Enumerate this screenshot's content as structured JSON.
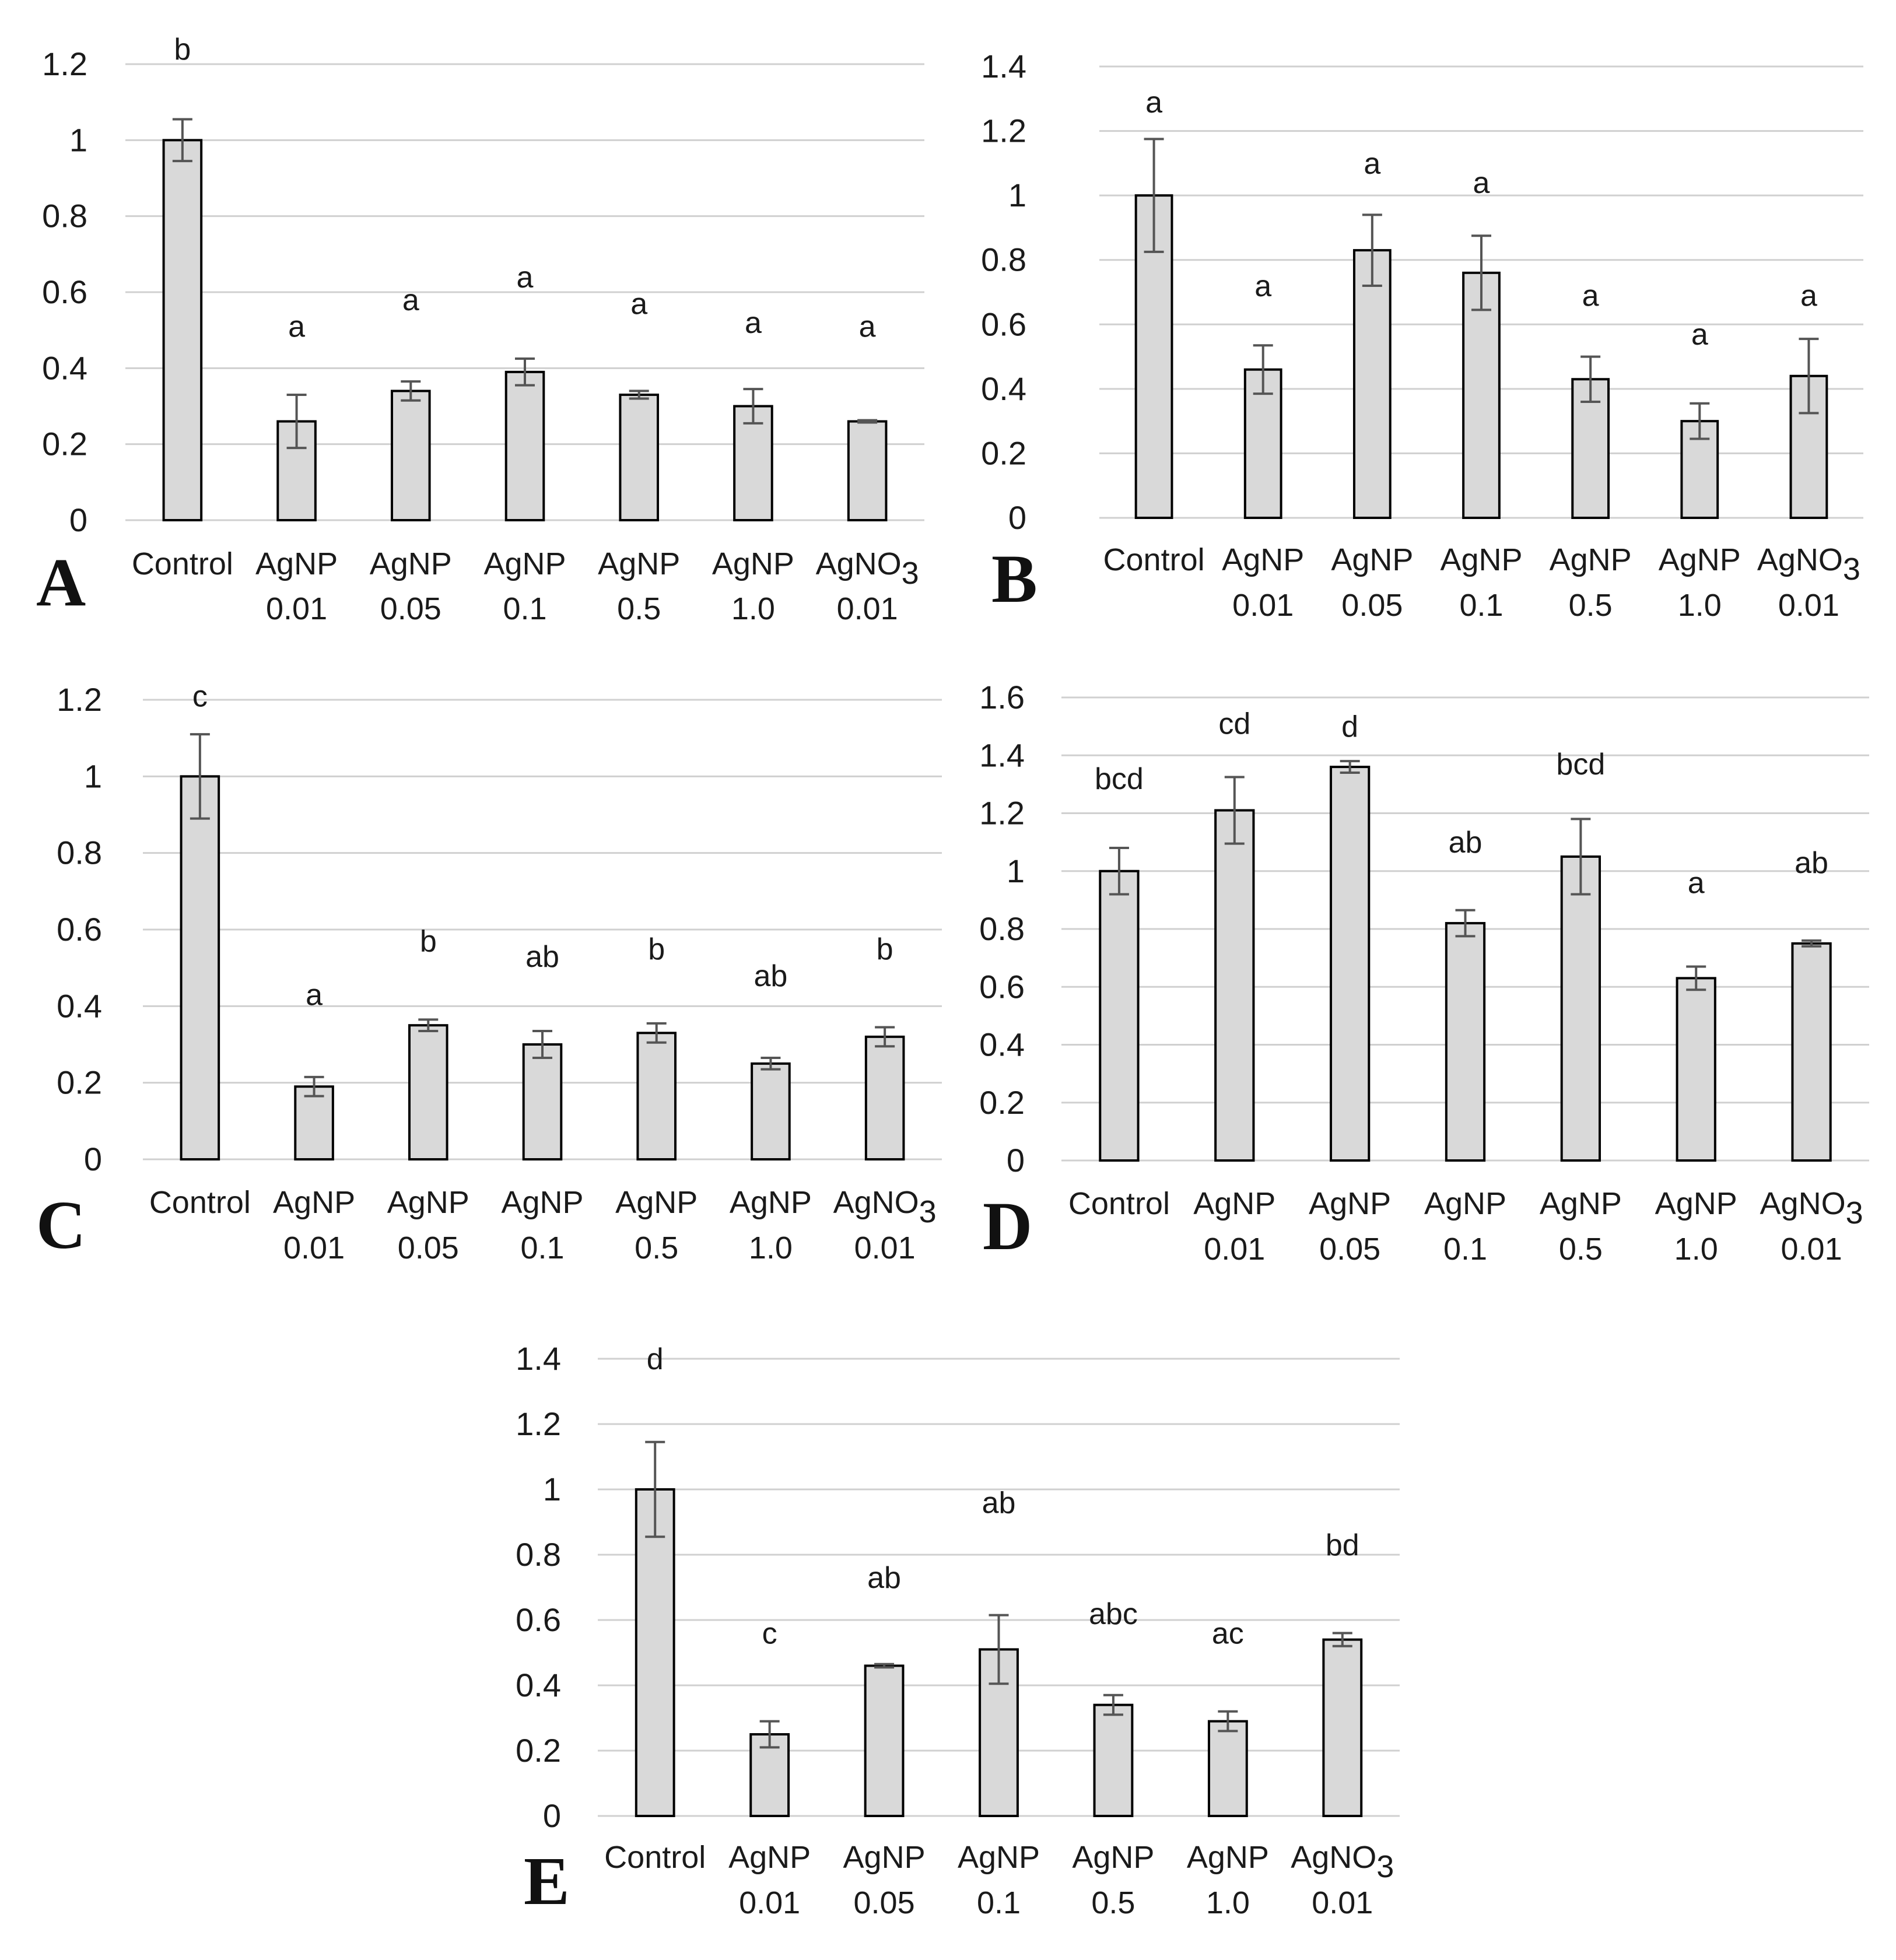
{
  "colors": {
    "bar_fill": "#d9d9d9",
    "bar_stroke": "#000000",
    "grid": "#d0d0d0",
    "error_bar": "#555555"
  },
  "chart_data": [
    {
      "panel": "A",
      "type": "bar",
      "title": "",
      "xlabel": "",
      "ylabel": "",
      "ylim": [
        0,
        1.2
      ],
      "yticks": [
        0,
        0.2,
        0.4,
        0.6,
        0.8,
        1,
        1.2
      ],
      "ytick_labels": [
        "0",
        "0.2",
        "0.4",
        "0.6",
        "0.8",
        "1",
        "1.2"
      ],
      "categories": [
        {
          "line1": "Control",
          "line2": ""
        },
        {
          "line1": "AgNP",
          "line2": "0.01"
        },
        {
          "line1": "AgNP",
          "line2": "0.05"
        },
        {
          "line1": "AgNP",
          "line2": "0.1"
        },
        {
          "line1": "AgNP",
          "line2": "0.5"
        },
        {
          "line1": "AgNP",
          "line2": "1.0"
        },
        {
          "line1": "AgNO",
          "sub": "3",
          "line2": "0.01"
        }
      ],
      "values": [
        1.0,
        0.26,
        0.34,
        0.39,
        0.33,
        0.3,
        0.26
      ],
      "errors": [
        0.055,
        0.07,
        0.025,
        0.035,
        0.01,
        0.045,
        0.003
      ],
      "letters": [
        "b",
        "a",
        "a",
        "a",
        "a",
        "a",
        "a"
      ],
      "letter_heights": [
        1.24,
        0.51,
        0.58,
        0.64,
        0.57,
        0.52,
        0.51
      ]
    },
    {
      "panel": "B",
      "type": "bar",
      "title": "",
      "xlabel": "",
      "ylabel": "",
      "ylim": [
        0,
        1.4
      ],
      "yticks": [
        0,
        0.2,
        0.4,
        0.6,
        0.8,
        1,
        1.2,
        1.4
      ],
      "ytick_labels": [
        "0",
        "0.2",
        "0.4",
        "0.6",
        "0.8",
        "1",
        "1.2",
        "1.4"
      ],
      "categories": [
        {
          "line1": "Control",
          "line2": ""
        },
        {
          "line1": "AgNP",
          "line2": "0.01"
        },
        {
          "line1": "AgNP",
          "line2": "0.05"
        },
        {
          "line1": "AgNP",
          "line2": "0.1"
        },
        {
          "line1": "AgNP",
          "line2": "0.5"
        },
        {
          "line1": "AgNP",
          "line2": "1.0"
        },
        {
          "line1": "AgNO",
          "sub": "3",
          "line2": "0.01"
        }
      ],
      "values": [
        1.0,
        0.46,
        0.83,
        0.76,
        0.43,
        0.3,
        0.44
      ],
      "errors": [
        0.175,
        0.075,
        0.11,
        0.115,
        0.07,
        0.055,
        0.115
      ],
      "letters": [
        "a",
        "a",
        "a",
        "a",
        "a",
        "a",
        "a"
      ],
      "letter_heights": [
        1.29,
        0.72,
        1.1,
        1.04,
        0.69,
        0.57,
        0.69
      ]
    },
    {
      "panel": "C",
      "type": "bar",
      "title": "",
      "xlabel": "",
      "ylabel": "",
      "ylim": [
        0,
        1.2
      ],
      "yticks": [
        0,
        0.2,
        0.4,
        0.6,
        0.8,
        1,
        1.2
      ],
      "ytick_labels": [
        "0",
        "0.2",
        "0.4",
        "0.6",
        "0.8",
        "1",
        "1.2"
      ],
      "categories": [
        {
          "line1": "Control",
          "line2": ""
        },
        {
          "line1": "AgNP",
          "line2": "0.01"
        },
        {
          "line1": "AgNP",
          "line2": "0.05"
        },
        {
          "line1": "AgNP",
          "line2": "0.1"
        },
        {
          "line1": "AgNP",
          "line2": "0.5"
        },
        {
          "line1": "AgNP",
          "line2": "1.0"
        },
        {
          "line1": "AgNO",
          "sub": "3",
          "line2": "0.01"
        }
      ],
      "values": [
        1.0,
        0.19,
        0.35,
        0.3,
        0.33,
        0.25,
        0.32
      ],
      "errors": [
        0.11,
        0.025,
        0.015,
        0.035,
        0.025,
        0.015,
        0.025
      ],
      "letters": [
        "c",
        "a",
        "b",
        "ab",
        "b",
        "ab",
        "b"
      ],
      "letter_heights": [
        1.21,
        0.43,
        0.57,
        0.53,
        0.55,
        0.48,
        0.55
      ]
    },
    {
      "panel": "D",
      "type": "bar",
      "title": "",
      "xlabel": "",
      "ylabel": "",
      "ylim": [
        0,
        1.6
      ],
      "yticks": [
        0,
        0.2,
        0.4,
        0.6,
        0.8,
        1,
        1.2,
        1.4,
        1.6
      ],
      "ytick_labels": [
        "0",
        "0.2",
        "0.4",
        "0.6",
        "0.8",
        "1",
        "1.2",
        "1.4",
        "1.6"
      ],
      "categories": [
        {
          "line1": "Control",
          "line2": ""
        },
        {
          "line1": "AgNP",
          "line2": "0.01"
        },
        {
          "line1": "AgNP",
          "line2": "0.05"
        },
        {
          "line1": "AgNP",
          "line2": "0.1"
        },
        {
          "line1": "AgNP",
          "line2": "0.5"
        },
        {
          "line1": "AgNP",
          "line2": "1.0"
        },
        {
          "line1": "AgNO",
          "sub": "3",
          "line2": "0.01"
        }
      ],
      "values": [
        1.0,
        1.21,
        1.36,
        0.82,
        1.05,
        0.63,
        0.75
      ],
      "errors": [
        0.08,
        0.115,
        0.02,
        0.045,
        0.13,
        0.04,
        0.01
      ],
      "letters": [
        "bcd",
        "cd",
        "d",
        "ab",
        "bcd",
        "a",
        "ab"
      ],
      "letter_heights": [
        1.32,
        1.51,
        1.5,
        1.1,
        1.37,
        0.96,
        1.03
      ]
    },
    {
      "panel": "E",
      "type": "bar",
      "title": "",
      "xlabel": "",
      "ylabel": "",
      "ylim": [
        0,
        1.4
      ],
      "yticks": [
        0,
        0.2,
        0.4,
        0.6,
        0.8,
        1,
        1.2,
        1.4
      ],
      "ytick_labels": [
        "0",
        "0.2",
        "0.4",
        "0.6",
        "0.8",
        "1",
        "1.2",
        "1.4"
      ],
      "categories": [
        {
          "line1": "Control",
          "line2": ""
        },
        {
          "line1": "AgNP",
          "line2": "0.01"
        },
        {
          "line1": "AgNP",
          "line2": "0.05"
        },
        {
          "line1": "AgNP",
          "line2": "0.1"
        },
        {
          "line1": "AgNP",
          "line2": "0.5"
        },
        {
          "line1": "AgNP",
          "line2": "1.0"
        },
        {
          "line1": "AgNO",
          "sub": "3",
          "line2": "0.01"
        }
      ],
      "values": [
        1.0,
        0.25,
        0.46,
        0.51,
        0.34,
        0.29,
        0.54
      ],
      "errors": [
        0.145,
        0.04,
        0.005,
        0.105,
        0.03,
        0.03,
        0.02
      ],
      "letters": [
        "d",
        "c",
        "ab",
        "ab",
        "abc",
        "ac",
        "bd"
      ],
      "letter_heights": [
        1.4,
        0.56,
        0.73,
        0.96,
        0.62,
        0.56,
        0.83
      ]
    }
  ]
}
